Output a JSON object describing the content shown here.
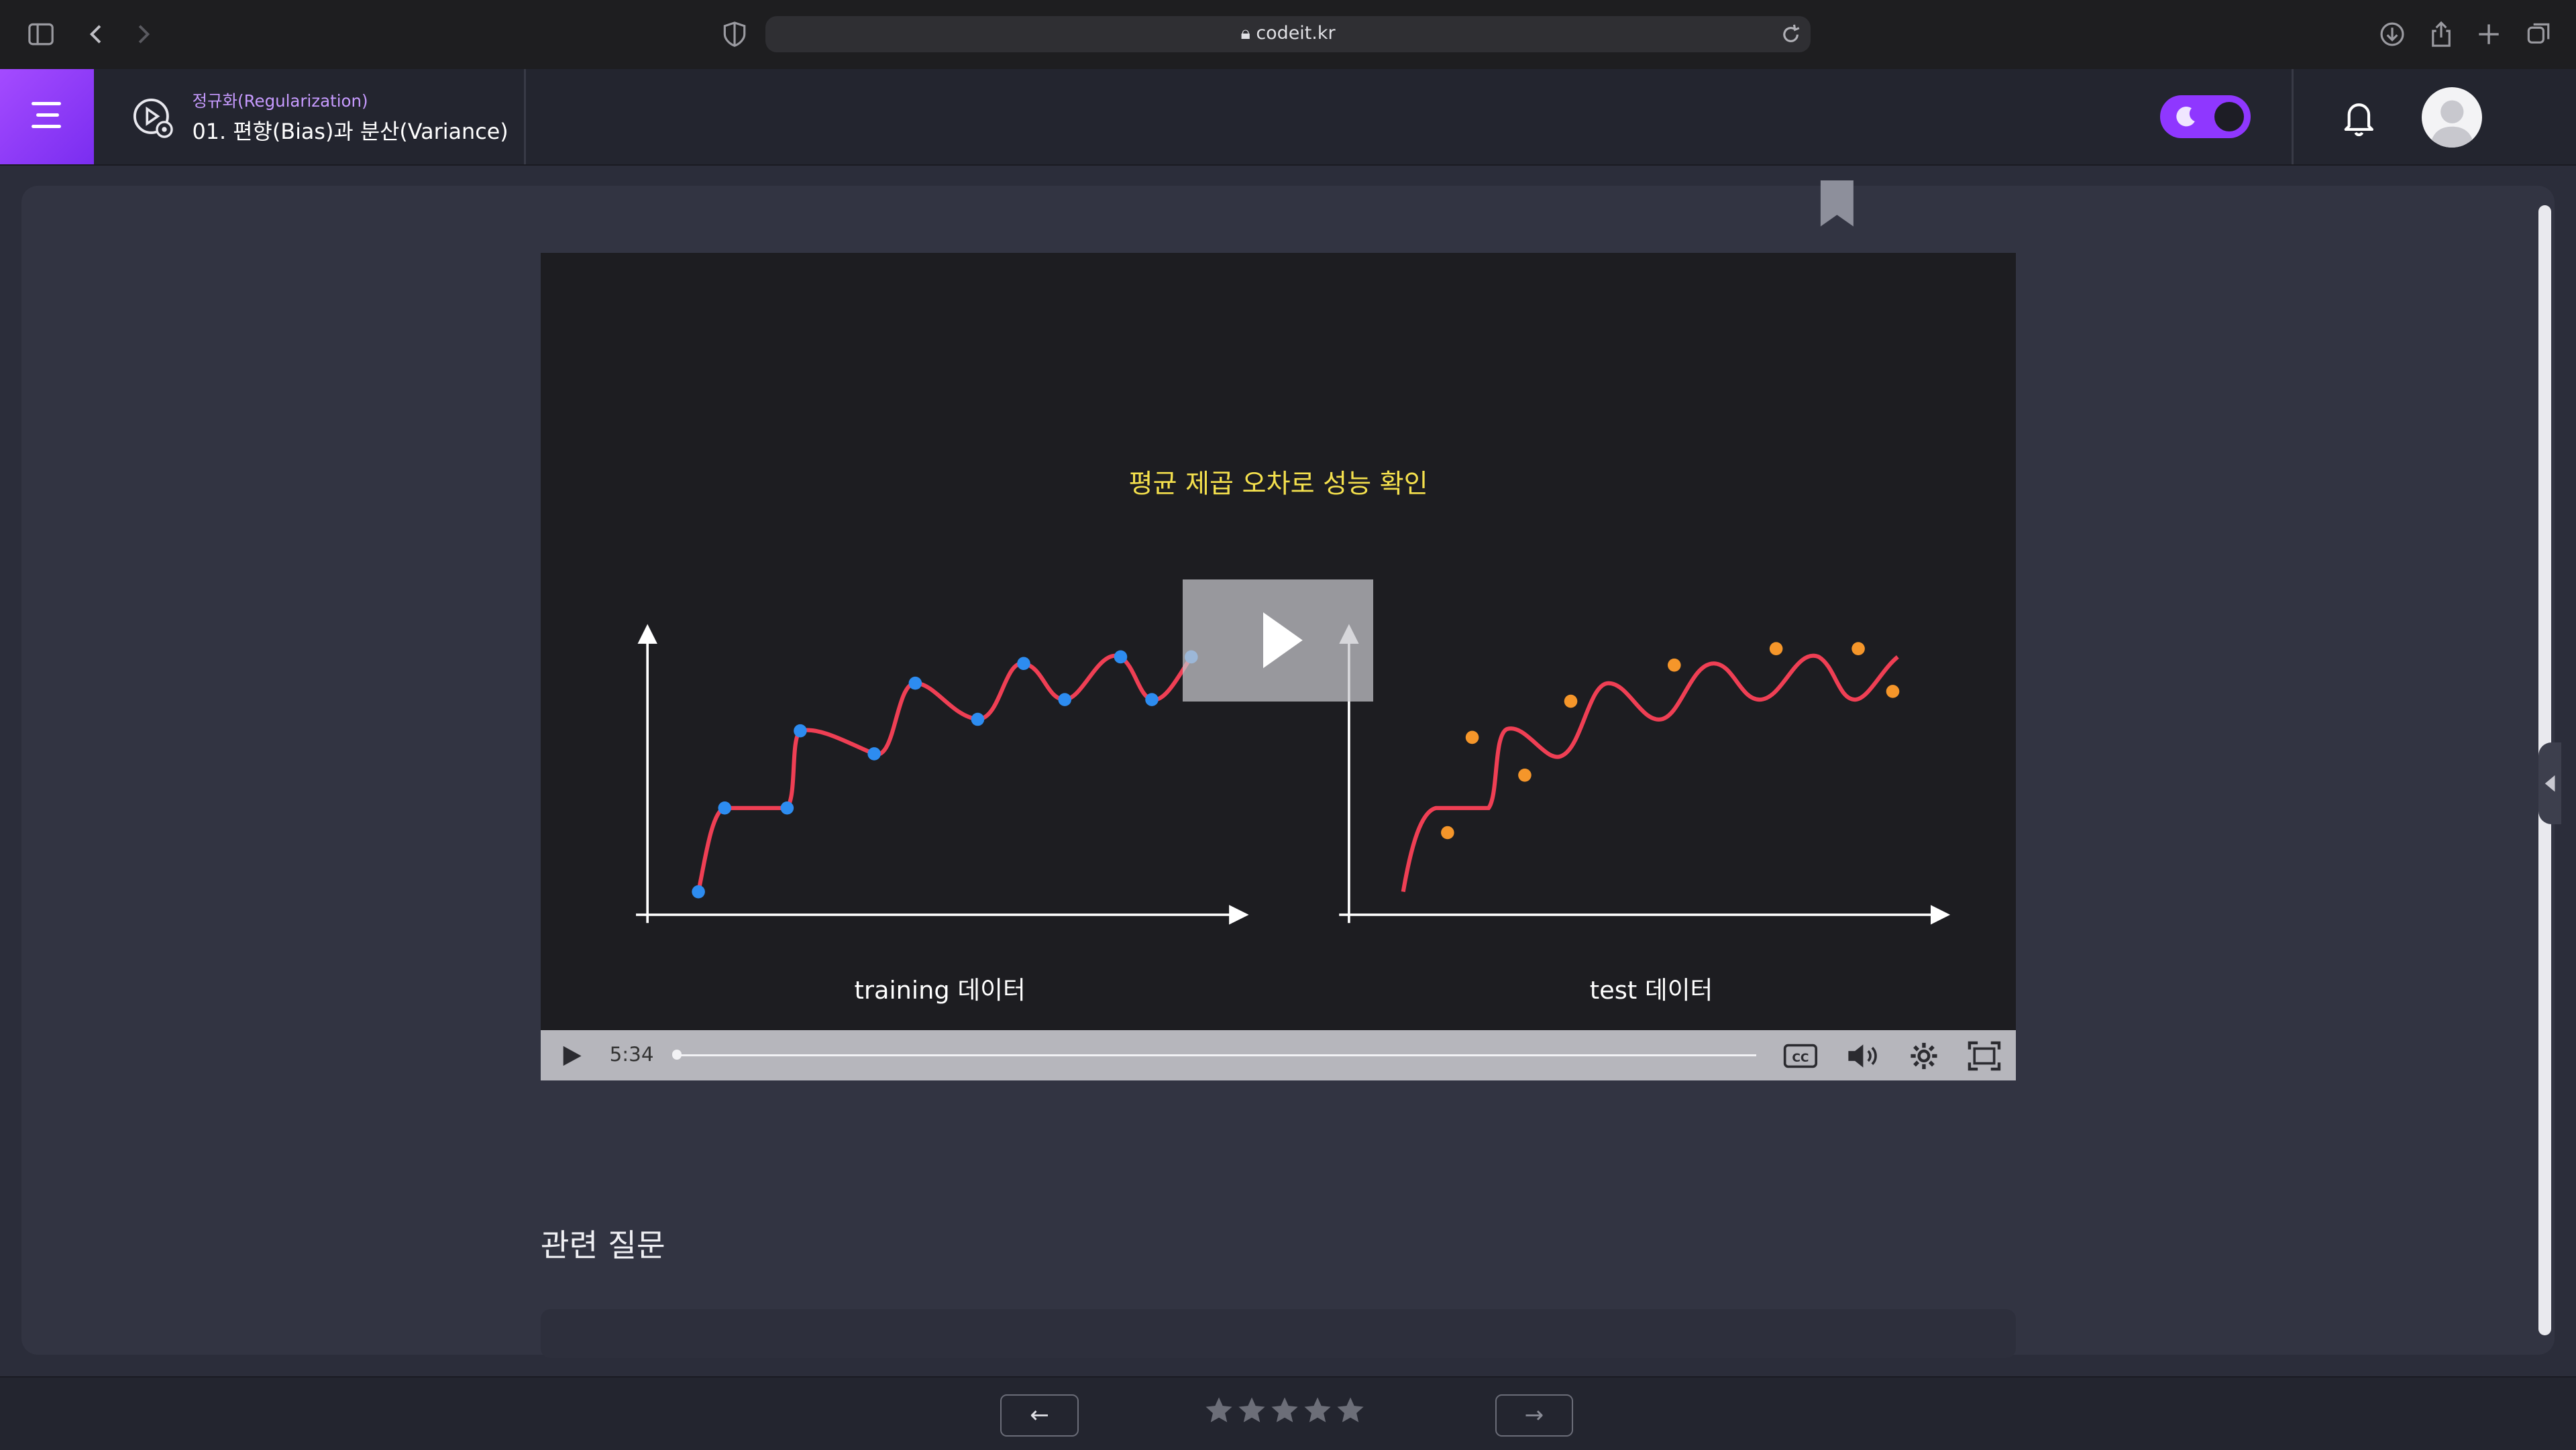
{
  "browser": {
    "url": "codeit.kr"
  },
  "header": {
    "breadcrumb": "정규화(Regularization)",
    "lesson_title": "01. 편향(Bias)과 분산(Variance)",
    "accent": "#8f37ff"
  },
  "video": {
    "slide_title": "평균 제곱 오차로 성능 확인",
    "left_caption": "training 데이터",
    "right_caption": "test 데이터",
    "duration": "5:34",
    "progress": 0
  },
  "related": {
    "title": "관련 질문"
  },
  "footer": {
    "prev_label": "←",
    "next_label": "→",
    "rating": 0,
    "max_rating": 5
  }
}
